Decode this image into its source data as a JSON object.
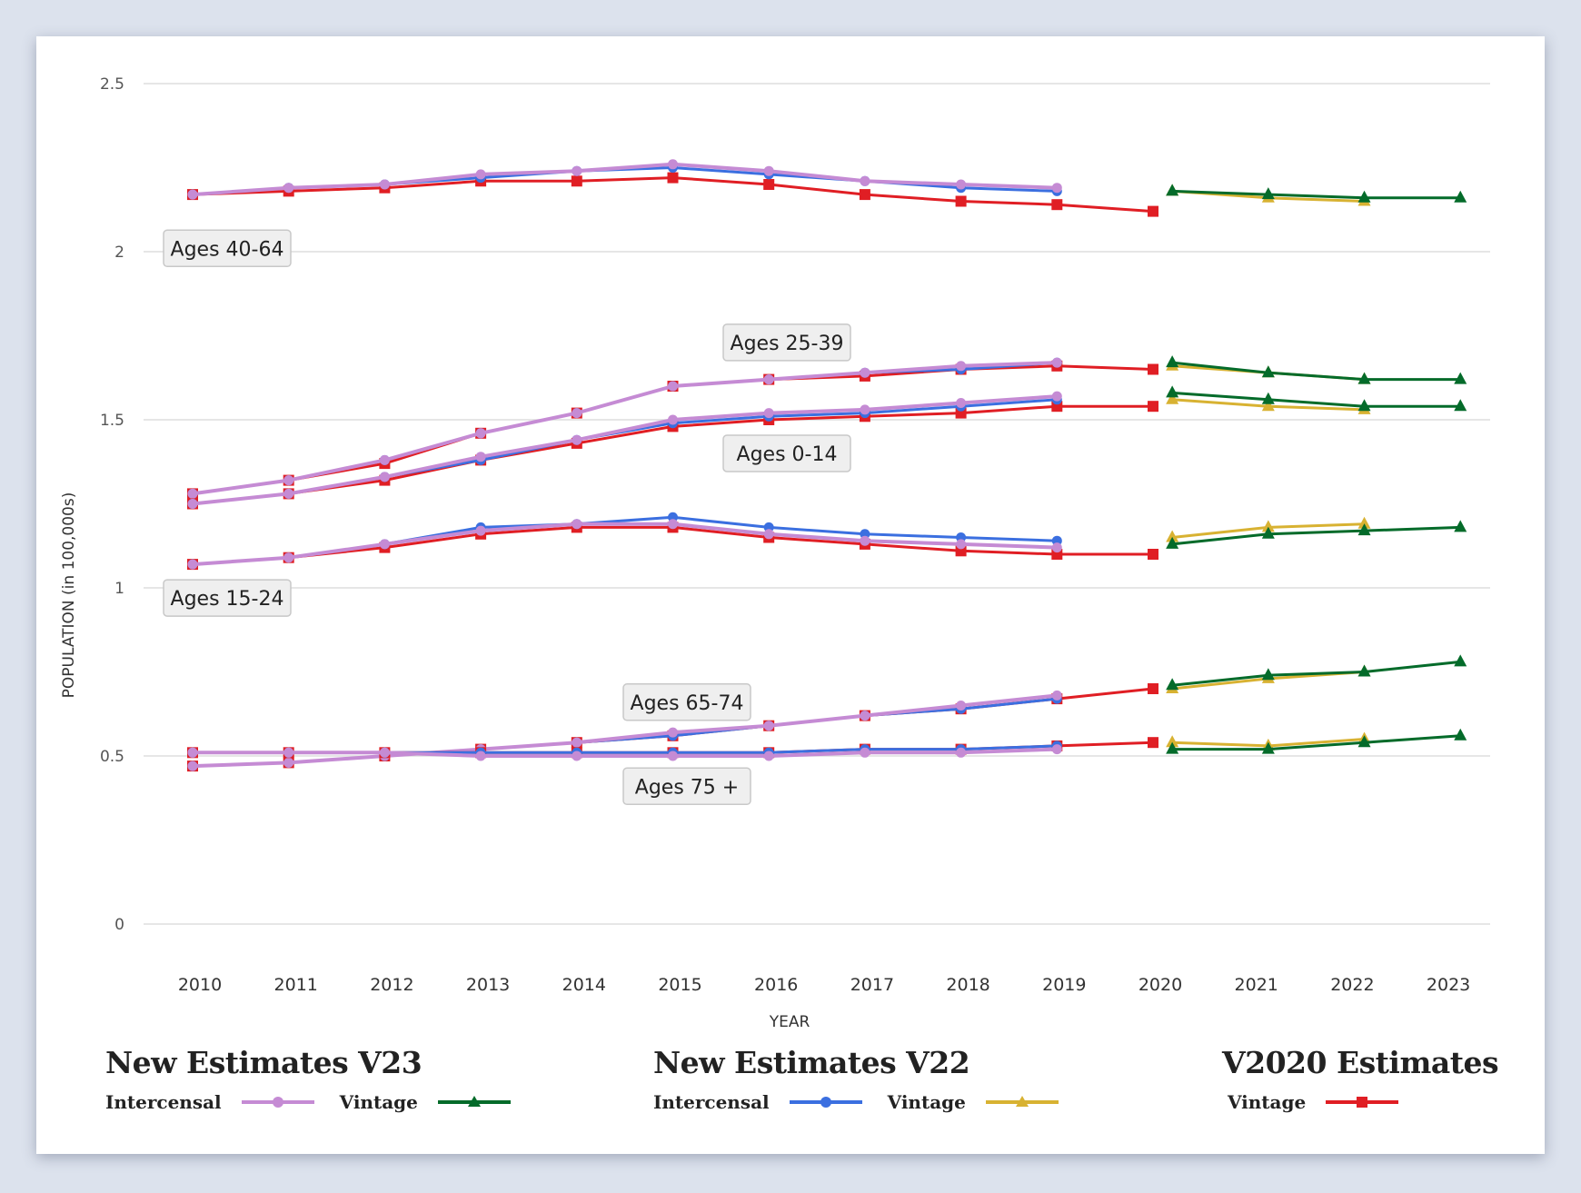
{
  "chart_data": {
    "type": "line",
    "title": "",
    "xlabel": "YEAR",
    "ylabel": "POPULATION (in 100,000s)",
    "ylim": [
      0,
      2.5
    ],
    "yticks": [
      "0",
      "0.5",
      "1",
      "1.5",
      "2",
      "2.5"
    ],
    "ytick_values": [
      0,
      0.5,
      1,
      1.5,
      2,
      2.5
    ],
    "xticks": [
      "2010",
      "2011",
      "2012",
      "2013",
      "2014",
      "2015",
      "2016",
      "2017",
      "2018",
      "2019",
      "2020",
      "2021",
      "2022",
      "2023"
    ],
    "grid": true,
    "legend_position": "bottom",
    "intercensal_x": [
      2010,
      2011,
      2012,
      2013,
      2014,
      2015,
      2016,
      2017,
      2018,
      2019
    ],
    "v2020_x": [
      2010,
      2011,
      2012,
      2013,
      2014,
      2015,
      2016,
      2017,
      2018,
      2019,
      2020
    ],
    "vintage_x": [
      2020.2,
      2021.2,
      2022.2,
      2023.2
    ],
    "series_styles": {
      "v23_intercensal": {
        "color": "#c58bd4",
        "marker": "circle"
      },
      "v23_vintage": {
        "color": "#046b2a",
        "marker": "triangle"
      },
      "v22_intercensal": {
        "color": "#3b6fe0",
        "marker": "circle"
      },
      "v22_vintage": {
        "color": "#d8b232",
        "marker": "triangle"
      },
      "v2020_vintage": {
        "color": "#e01e24",
        "marker": "square"
      }
    },
    "groups": [
      {
        "name": "Ages 40-64",
        "v2020_vintage": [
          2.17,
          2.18,
          2.19,
          2.21,
          2.21,
          2.22,
          2.2,
          2.17,
          2.15,
          2.14,
          2.12
        ],
        "v22_intercensal": [
          2.17,
          2.19,
          2.2,
          2.22,
          2.24,
          2.25,
          2.23,
          2.21,
          2.19,
          2.18
        ],
        "v23_intercensal": [
          2.17,
          2.19,
          2.2,
          2.23,
          2.24,
          2.26,
          2.24,
          2.21,
          2.2,
          2.19
        ],
        "v22_vintage": [
          2.18,
          2.16,
          2.15
        ],
        "v23_vintage": [
          2.18,
          2.17,
          2.16,
          2.16
        ]
      },
      {
        "name": "Ages 25-39",
        "v2020_vintage": [
          1.28,
          1.32,
          1.37,
          1.46,
          1.52,
          1.6,
          1.62,
          1.63,
          1.65,
          1.66,
          1.65
        ],
        "v22_intercensal": [
          1.28,
          1.32,
          1.38,
          1.46,
          1.52,
          1.6,
          1.62,
          1.64,
          1.65,
          1.67
        ],
        "v23_intercensal": [
          1.28,
          1.32,
          1.38,
          1.46,
          1.52,
          1.6,
          1.62,
          1.64,
          1.66,
          1.67
        ],
        "v22_vintage": [
          1.66,
          1.64,
          1.62
        ],
        "v23_vintage": [
          1.67,
          1.64,
          1.62,
          1.62
        ]
      },
      {
        "name": "Ages 0-14",
        "v2020_vintage": [
          1.25,
          1.28,
          1.32,
          1.38,
          1.43,
          1.48,
          1.5,
          1.51,
          1.52,
          1.54,
          1.54
        ],
        "v22_intercensal": [
          1.25,
          1.28,
          1.33,
          1.38,
          1.44,
          1.49,
          1.51,
          1.52,
          1.54,
          1.56
        ],
        "v23_intercensal": [
          1.25,
          1.28,
          1.33,
          1.39,
          1.44,
          1.5,
          1.52,
          1.53,
          1.55,
          1.57
        ],
        "v22_vintage": [
          1.56,
          1.54,
          1.53
        ],
        "v23_vintage": [
          1.58,
          1.56,
          1.54,
          1.54
        ]
      },
      {
        "name": "Ages 15-24",
        "v2020_vintage": [
          1.07,
          1.09,
          1.12,
          1.16,
          1.18,
          1.18,
          1.15,
          1.13,
          1.11,
          1.1,
          1.1
        ],
        "v22_intercensal": [
          1.07,
          1.09,
          1.13,
          1.18,
          1.19,
          1.21,
          1.18,
          1.16,
          1.15,
          1.14
        ],
        "v23_intercensal": [
          1.07,
          1.09,
          1.13,
          1.17,
          1.19,
          1.19,
          1.16,
          1.14,
          1.13,
          1.12
        ],
        "v22_vintage": [
          1.15,
          1.18,
          1.19
        ],
        "v23_vintage": [
          1.13,
          1.16,
          1.17,
          1.18
        ]
      },
      {
        "name": "Ages 65-74",
        "v2020_vintage": [
          0.47,
          0.48,
          0.5,
          0.52,
          0.54,
          0.56,
          0.59,
          0.62,
          0.64,
          0.67,
          0.7
        ],
        "v22_intercensal": [
          0.47,
          0.48,
          0.5,
          0.52,
          0.54,
          0.56,
          0.59,
          0.62,
          0.64,
          0.67
        ],
        "v23_intercensal": [
          0.47,
          0.48,
          0.5,
          0.52,
          0.54,
          0.57,
          0.59,
          0.62,
          0.65,
          0.68
        ],
        "v22_vintage": [
          0.7,
          0.73,
          0.75
        ],
        "v23_vintage": [
          0.71,
          0.74,
          0.75,
          0.78
        ]
      },
      {
        "name": "Ages 75 +",
        "v2020_vintage": [
          0.51,
          0.51,
          0.51,
          0.51,
          0.51,
          0.51,
          0.51,
          0.52,
          0.52,
          0.53,
          0.54
        ],
        "v22_intercensal": [
          0.51,
          0.51,
          0.51,
          0.51,
          0.51,
          0.51,
          0.51,
          0.52,
          0.52,
          0.53
        ],
        "v23_intercensal": [
          0.51,
          0.51,
          0.51,
          0.5,
          0.5,
          0.5,
          0.5,
          0.51,
          0.51,
          0.52
        ],
        "v22_vintage": [
          0.54,
          0.53,
          0.55
        ],
        "v23_vintage": [
          0.52,
          0.52,
          0.54,
          0.56
        ]
      }
    ],
    "annotations": [
      "Ages 40-64",
      "Ages 25-39",
      "Ages 0-14",
      "Ages 15-24",
      "Ages 65-74",
      "Ages 75 +"
    ]
  },
  "legend": {
    "v23": {
      "title": "New Estimates V23",
      "intercensal": "Intercensal",
      "vintage": "Vintage"
    },
    "v22": {
      "title": "New Estimates V22",
      "intercensal": "Intercensal",
      "vintage": "Vintage"
    },
    "v2020": {
      "title": "V2020 Estimates",
      "vintage": "Vintage"
    }
  }
}
